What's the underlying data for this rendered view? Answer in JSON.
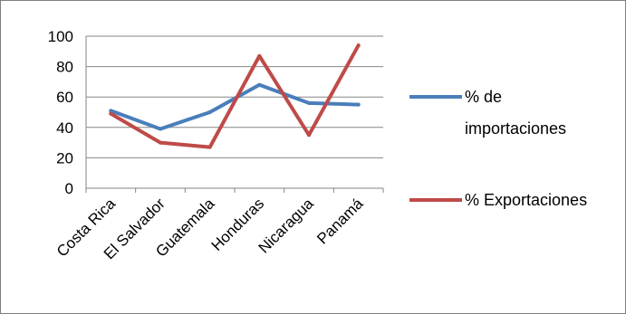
{
  "chart_data": {
    "type": "line",
    "title": "",
    "xlabel": "",
    "ylabel": "",
    "categories": [
      "Costa Rica",
      "El Salvador",
      "Guatemala",
      "Honduras",
      "Nicaragua",
      "Panamá"
    ],
    "ylim": [
      0,
      100
    ],
    "yticks": [
      "0",
      "20",
      "40",
      "60",
      "80",
      "100"
    ],
    "grid": true,
    "legend_position": "right",
    "series": [
      {
        "name_lines": [
          "% de",
          "importaciones"
        ],
        "color": "#4a7ebb",
        "values": [
          51,
          39,
          50,
          68,
          56,
          55
        ]
      },
      {
        "name_lines": [
          "% Exportaciones"
        ],
        "color": "#be4b48",
        "values": [
          49,
          30,
          27,
          87,
          35,
          94
        ]
      }
    ]
  }
}
